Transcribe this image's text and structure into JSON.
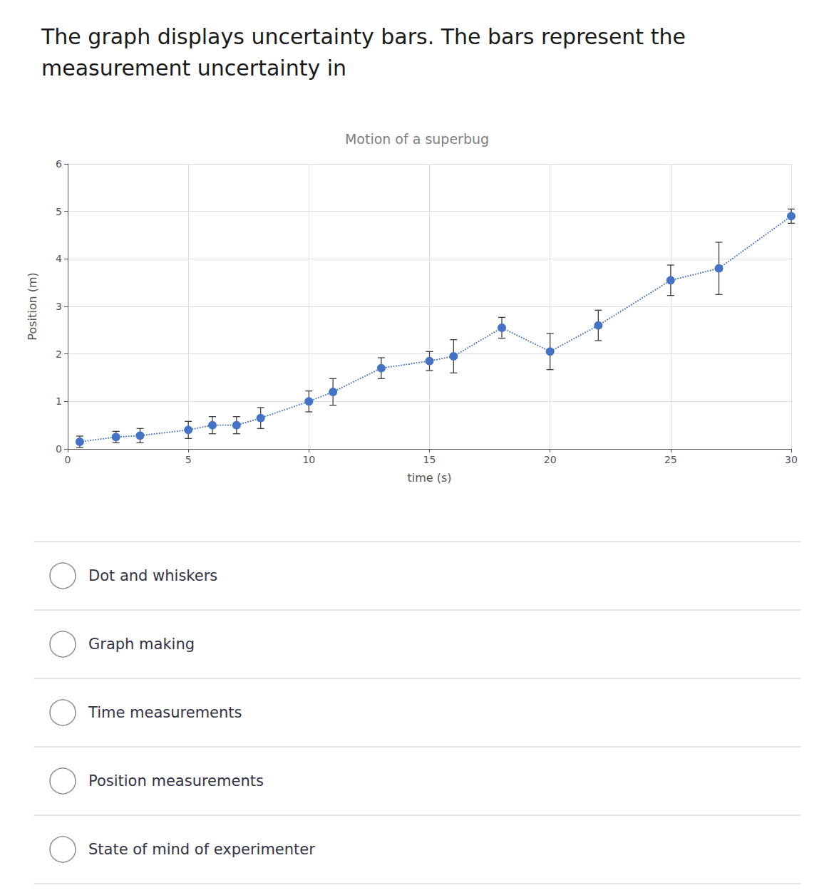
{
  "chart_data": {
    "type": "line",
    "title": "Motion of a superbug",
    "subtitle": [
      "The graph displays uncertainty bars. The bars represent the",
      "measurement uncertainty in"
    ],
    "annotations": [
      "Dot and whiskers",
      "Graph making",
      "Time measurements",
      "Position measurements",
      "State of mind of experimenter"
    ],
    "x_label": "time (s)",
    "y_label": "Position (m)",
    "xlim": [
      0,
      30
    ],
    "ylim": [
      0,
      6
    ],
    "xticks": [
      0,
      5,
      10,
      15,
      20,
      25,
      30
    ],
    "yticks": [
      0,
      1,
      2,
      3,
      4,
      5,
      6
    ],
    "x": [
      0.5,
      2,
      3,
      5,
      6,
      7,
      8,
      10,
      11,
      13,
      15,
      16,
      18,
      20,
      22,
      25,
      27,
      30
    ],
    "values": [
      0.15,
      0.25,
      0.28,
      0.4,
      0.5,
      0.5,
      0.65,
      1.0,
      1.2,
      1.7,
      1.85,
      1.95,
      2.55,
      2.05,
      2.6,
      3.55,
      3.8,
      4.9
    ],
    "yerr": [
      0.12,
      0.12,
      0.15,
      0.18,
      0.18,
      0.18,
      0.22,
      0.22,
      0.28,
      0.22,
      0.2,
      0.35,
      0.22,
      0.38,
      0.32,
      0.32,
      0.55,
      0.15
    ],
    "color": "#4472C4",
    "line_style": "dotted",
    "marker": "circle",
    "grid": true
  }
}
